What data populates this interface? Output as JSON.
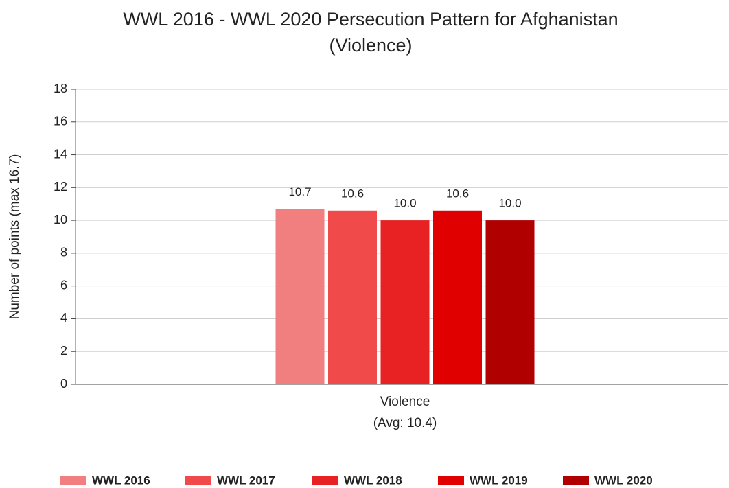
{
  "chart_data": {
    "type": "bar",
    "title": [
      "WWL 2016 - WWL 2020 Persecution Pattern for Afghanistan",
      "(Violence)"
    ],
    "ylabel": "Number of points (max 16.7)",
    "categories": [
      "Violence"
    ],
    "category_sublabels": [
      "(Avg: 10.4)"
    ],
    "series": [
      {
        "name": "WWL 2016",
        "color": "#f27f7f",
        "values": [
          10.7
        ]
      },
      {
        "name": "WWL 2017",
        "color": "#f04a4a",
        "values": [
          10.6
        ]
      },
      {
        "name": "WWL 2018",
        "color": "#e82222",
        "values": [
          10
        ],
        "value_labels": [
          "10.0"
        ]
      },
      {
        "name": "WWL 2019",
        "color": "#e00000",
        "values": [
          10.6
        ]
      },
      {
        "name": "WWL 2020",
        "color": "#b00000",
        "values": [
          10
        ],
        "value_labels": [
          "10.0"
        ]
      }
    ],
    "ylim": [
      0,
      18
    ],
    "yticks": [
      0,
      2,
      4,
      6,
      8,
      10,
      12,
      14,
      16,
      18
    ],
    "grid": true,
    "legend": "bottom"
  }
}
